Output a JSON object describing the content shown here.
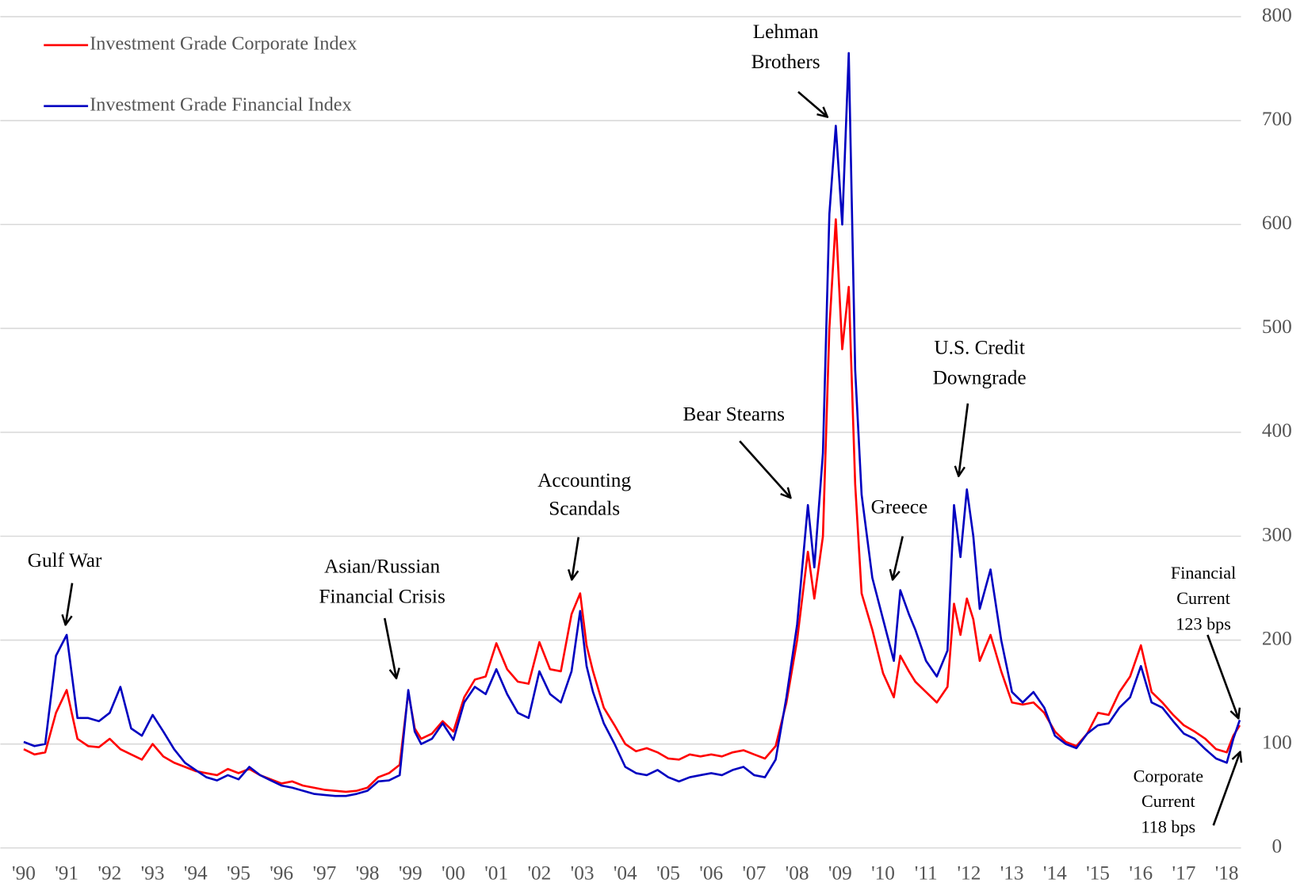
{
  "chart_data": {
    "type": "line",
    "x": [
      1990.0,
      1990.25,
      1990.5,
      1990.75,
      1991.0,
      1991.25,
      1991.5,
      1991.75,
      1992.0,
      1992.25,
      1992.5,
      1992.75,
      1993.0,
      1993.25,
      1993.5,
      1993.75,
      1994.0,
      1994.25,
      1994.5,
      1994.75,
      1995.0,
      1995.25,
      1995.5,
      1995.75,
      1996.0,
      1996.25,
      1996.5,
      1996.75,
      1997.0,
      1997.25,
      1997.5,
      1997.75,
      1998.0,
      1998.25,
      1998.5,
      1998.75,
      1998.95,
      1999.1,
      1999.25,
      1999.5,
      1999.75,
      2000.0,
      2000.25,
      2000.5,
      2000.75,
      2001.0,
      2001.25,
      2001.5,
      2001.75,
      2002.0,
      2002.25,
      2002.5,
      2002.75,
      2002.95,
      2003.1,
      2003.25,
      2003.5,
      2003.75,
      2004.0,
      2004.25,
      2004.5,
      2004.75,
      2005.0,
      2005.25,
      2005.5,
      2005.75,
      2006.0,
      2006.25,
      2006.5,
      2006.75,
      2007.0,
      2007.25,
      2007.5,
      2007.75,
      2008.0,
      2008.25,
      2008.4,
      2008.6,
      2008.75,
      2008.9,
      2009.05,
      2009.2,
      2009.35,
      2009.5,
      2009.75,
      2010.0,
      2010.25,
      2010.4,
      2010.6,
      2010.75,
      2011.0,
      2011.25,
      2011.5,
      2011.65,
      2011.8,
      2011.95,
      2012.1,
      2012.25,
      2012.5,
      2012.75,
      2013.0,
      2013.25,
      2013.5,
      2013.75,
      2014.0,
      2014.25,
      2014.5,
      2014.75,
      2015.0,
      2015.25,
      2015.5,
      2015.75,
      2016.0,
      2016.25,
      2016.5,
      2016.75,
      2017.0,
      2017.25,
      2017.5,
      2017.75,
      2018.0,
      2018.15,
      2018.3
    ],
    "series": [
      {
        "name": "Investment Grade Corporate Index",
        "color": "#ff0000",
        "values": [
          95,
          90,
          92,
          130,
          152,
          105,
          98,
          97,
          105,
          95,
          90,
          85,
          100,
          88,
          82,
          78,
          74,
          72,
          70,
          76,
          72,
          76,
          70,
          66,
          62,
          64,
          60,
          58,
          56,
          55,
          54,
          55,
          58,
          68,
          72,
          80,
          150,
          115,
          105,
          110,
          122,
          112,
          145,
          162,
          165,
          197,
          172,
          160,
          158,
          198,
          172,
          170,
          225,
          245,
          195,
          170,
          135,
          118,
          100,
          93,
          96,
          92,
          86,
          85,
          90,
          88,
          90,
          88,
          92,
          94,
          90,
          86,
          98,
          140,
          200,
          285,
          240,
          300,
          500,
          605,
          480,
          540,
          350,
          245,
          210,
          168,
          145,
          185,
          170,
          160,
          150,
          140,
          155,
          235,
          205,
          240,
          220,
          180,
          205,
          170,
          140,
          138,
          140,
          130,
          112,
          102,
          98,
          110,
          130,
          128,
          150,
          165,
          195,
          150,
          140,
          128,
          118,
          112,
          105,
          95,
          92,
          108,
          118
        ]
      },
      {
        "name": "Investment Grade Financial Index",
        "color": "#0000c0",
        "values": [
          102,
          98,
          100,
          185,
          205,
          125,
          125,
          122,
          130,
          155,
          115,
          108,
          128,
          112,
          95,
          82,
          75,
          68,
          65,
          70,
          66,
          78,
          70,
          65,
          60,
          58,
          55,
          52,
          51,
          50,
          50,
          52,
          55,
          64,
          65,
          70,
          152,
          112,
          100,
          105,
          120,
          104,
          140,
          155,
          148,
          172,
          148,
          130,
          125,
          170,
          148,
          140,
          170,
          228,
          175,
          150,
          120,
          100,
          78,
          72,
          70,
          75,
          68,
          64,
          68,
          70,
          72,
          70,
          75,
          78,
          70,
          68,
          85,
          145,
          215,
          330,
          270,
          380,
          610,
          695,
          600,
          765,
          460,
          340,
          260,
          220,
          180,
          248,
          225,
          210,
          180,
          165,
          190,
          330,
          280,
          345,
          300,
          230,
          268,
          200,
          150,
          140,
          150,
          135,
          108,
          100,
          96,
          110,
          118,
          120,
          135,
          145,
          175,
          140,
          135,
          122,
          110,
          105,
          95,
          86,
          82,
          105,
          123
        ]
      }
    ],
    "xlim": [
      1990,
      2018.9
    ],
    "xticks": [
      {
        "value": 1990,
        "label": "'90"
      },
      {
        "value": 1991,
        "label": "'91"
      },
      {
        "value": 1992,
        "label": "'92"
      },
      {
        "value": 1993,
        "label": "'93"
      },
      {
        "value": 1994,
        "label": "'94"
      },
      {
        "value": 1995,
        "label": "'95"
      },
      {
        "value": 1996,
        "label": "'96"
      },
      {
        "value": 1997,
        "label": "'97"
      },
      {
        "value": 1998,
        "label": "'98"
      },
      {
        "value": 1999,
        "label": "'99"
      },
      {
        "value": 2000,
        "label": "'00"
      },
      {
        "value": 2001,
        "label": "'01"
      },
      {
        "value": 2002,
        "label": "'02"
      },
      {
        "value": 2003,
        "label": "'03"
      },
      {
        "value": 2004,
        "label": "'04"
      },
      {
        "value": 2005,
        "label": "'05"
      },
      {
        "value": 2006,
        "label": "'06"
      },
      {
        "value": 2007,
        "label": "'07"
      },
      {
        "value": 2008,
        "label": "'08"
      },
      {
        "value": 2009,
        "label": "'09"
      },
      {
        "value": 2010,
        "label": "'10"
      },
      {
        "value": 2011,
        "label": "'11"
      },
      {
        "value": 2012,
        "label": "'12"
      },
      {
        "value": 2013,
        "label": "'13"
      },
      {
        "value": 2014,
        "label": "'14"
      },
      {
        "value": 2015,
        "label": "'15"
      },
      {
        "value": 2016,
        "label": "'16"
      },
      {
        "value": 2017,
        "label": "'17"
      },
      {
        "value": 2018,
        "label": "'18"
      }
    ],
    "ylim": [
      0,
      800
    ],
    "yticks": [
      0,
      100,
      200,
      300,
      400,
      500,
      600,
      700,
      800
    ],
    "grid": true,
    "legend": "top-left",
    "annotations": [
      {
        "lines": [
          "Gulf War"
        ]
      },
      {
        "lines": [
          "Asian/Russian",
          "Financial Crisis"
        ]
      },
      {
        "lines": [
          "Accounting",
          "Scandals"
        ]
      },
      {
        "lines": [
          "Bear Stearns"
        ]
      },
      {
        "lines": [
          "Lehman",
          "Brothers"
        ]
      },
      {
        "lines": [
          "Greece"
        ]
      },
      {
        "lines": [
          "U.S. Credit",
          "Downgrade"
        ]
      },
      {
        "lines": [
          "Financial",
          "Current",
          "123 bps"
        ],
        "color": "#0000c0"
      },
      {
        "lines": [
          "Corporate",
          "Current",
          "118 bps"
        ],
        "color": "#ff0000"
      }
    ]
  }
}
